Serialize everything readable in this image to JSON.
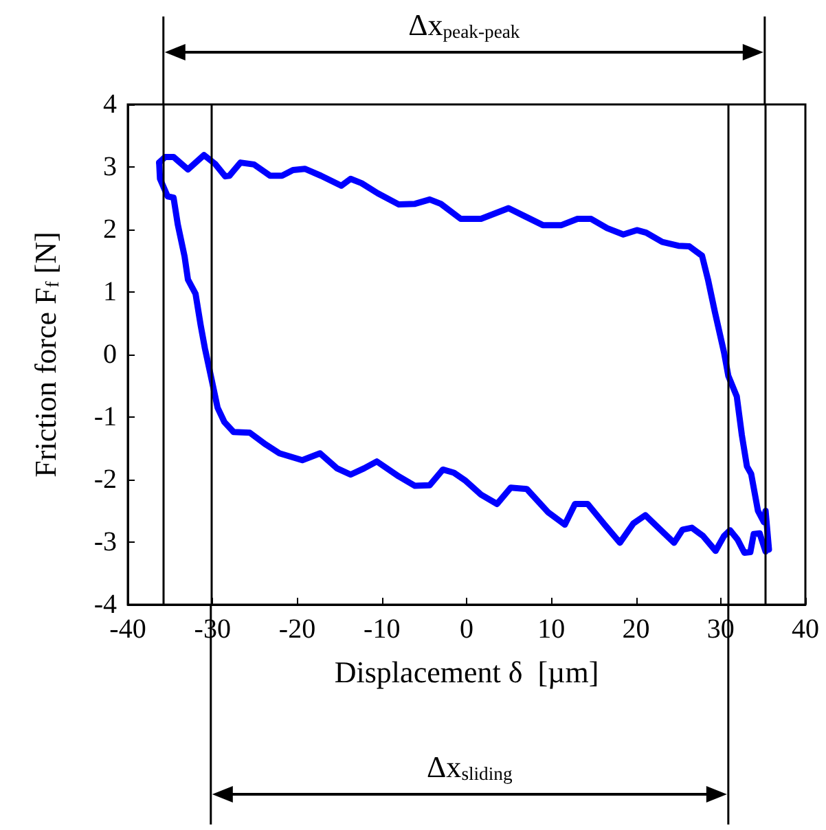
{
  "chart_data": {
    "type": "line",
    "xlabel": "Displacement δ  [µm]",
    "ylabel": "Friction force F$_{f}$ [N]",
    "series": [
      {
        "color": "#0000ff",
        "x": [
          -36.3,
          -35.6,
          -34.6,
          -32.9,
          -31.0,
          -29.7,
          -28.5,
          -28.0,
          -26.7,
          -25.1,
          -23.2,
          -21.8,
          -20.5,
          -19.1,
          -17.2,
          -14.8,
          -13.7,
          -12.4,
          -10.5,
          -8.0,
          -6.1,
          -4.35,
          -3.05,
          -0.7,
          1.7,
          4.95,
          9.0,
          11.2,
          13.1,
          14.7,
          16.6,
          18.5,
          20.1,
          21.2,
          23.1,
          25.0,
          26.3,
          27.8,
          28.5,
          29.3,
          30.4,
          30.9,
          31.9,
          32.5,
          33.1,
          33.6,
          34.4,
          35.1,
          35.3,
          35.7
        ],
        "values": [
          3.07,
          3.16,
          3.16,
          2.96,
          3.19,
          3.05,
          2.85,
          2.86,
          3.07,
          3.04,
          2.86,
          2.86,
          2.95,
          2.97,
          2.86,
          2.7,
          2.81,
          2.74,
          2.58,
          2.4,
          2.41,
          2.48,
          2.41,
          2.17,
          2.17,
          2.34,
          2.07,
          2.07,
          2.17,
          2.17,
          2.02,
          1.92,
          1.99,
          1.95,
          1.8,
          1.74,
          1.73,
          1.58,
          1.2,
          0.69,
          0.03,
          -0.34,
          -0.67,
          -1.29,
          -1.79,
          -1.91,
          -2.5,
          -2.68,
          -2.5,
          -3.12
        ]
      },
      {
        "color": "#0000ff",
        "x": [
          -36.3,
          -36.2,
          -35.3,
          -34.6,
          -34.1,
          -33.3,
          -32.9,
          -32.0,
          -31.4,
          -30.9,
          -30.2,
          -29.4,
          -28.6,
          -27.5,
          -25.6,
          -23.7,
          -22.1,
          -19.4,
          -17.3,
          -15.3,
          -13.7,
          -12.1,
          -10.6,
          -8.0,
          -6.1,
          -4.35,
          -2.8,
          -1.5,
          -0.2,
          1.7,
          3.6,
          5.2,
          7.1,
          9.6,
          11.6,
          12.8,
          14.3,
          16.3,
          18.1,
          19.7,
          21.1,
          23.1,
          24.5,
          25.5,
          26.6,
          27.9,
          29.4,
          30.4,
          31.1,
          32.0,
          32.8,
          33.5,
          33.9,
          34.6,
          35.3
        ],
        "values": [
          3.07,
          2.81,
          2.53,
          2.51,
          2.08,
          1.57,
          1.2,
          0.97,
          0.47,
          0.1,
          -0.34,
          -0.85,
          -1.08,
          -1.24,
          -1.25,
          -1.44,
          -1.58,
          -1.69,
          -1.58,
          -1.82,
          -1.92,
          -1.82,
          -1.71,
          -1.95,
          -2.1,
          -2.09,
          -1.84,
          -1.89,
          -2.01,
          -2.24,
          -2.39,
          -2.13,
          -2.15,
          -2.52,
          -2.72,
          -2.39,
          -2.39,
          -2.72,
          -3.01,
          -2.7,
          -2.57,
          -2.83,
          -3.01,
          -2.8,
          -2.77,
          -2.9,
          -3.14,
          -2.9,
          -2.81,
          -2.96,
          -3.17,
          -3.16,
          -2.87,
          -2.86,
          -3.15
        ]
      }
    ],
    "xlim": [
      -40,
      40
    ],
    "xticks": [
      -40,
      -30,
      -20,
      -10,
      0,
      10,
      20,
      30,
      40
    ],
    "ylim": [
      -4,
      4
    ],
    "yticks": [
      -4,
      -3,
      -2,
      -1,
      0,
      1,
      2,
      3,
      4
    ],
    "grid": false,
    "marker": "none",
    "line_style": "solid",
    "ref_lines": [
      {
        "axis": "x",
        "value": -35.8,
        "color": "#000000"
      },
      {
        "axis": "x",
        "value": 35.2,
        "color": "#000000"
      },
      {
        "axis": "x",
        "value": -30.2,
        "color": "#000000"
      },
      {
        "axis": "x",
        "value": 30.9,
        "color": "#000000"
      }
    ],
    "annotations": [
      "Δx$_{peak-peak}$",
      "Δx$_{sliding}$"
    ]
  }
}
